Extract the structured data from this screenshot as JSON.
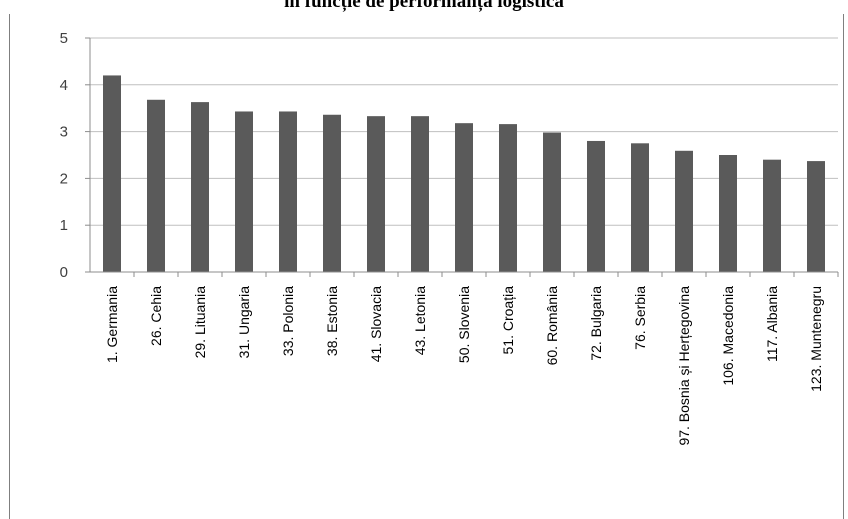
{
  "title_fragment": "în funcție de performanța logistică",
  "chart_data": {
    "type": "bar",
    "title": "în funcție de performanța logistică",
    "categories": [
      "1. Germania",
      "26. Cehia",
      "29. Lituania",
      "31. Ungaria",
      "33. Polonia",
      "38. Estonia",
      "41. Slovacia",
      "43. Letonia",
      "50. Slovenia",
      "51. Croația",
      "60. România",
      "72. Bulgaria",
      "76. Serbia",
      "97. Bosnia și Herțegovina",
      "106. Macedonia",
      "117. Albania",
      "123. Muntenegru"
    ],
    "values": [
      4.2,
      3.68,
      3.63,
      3.43,
      3.43,
      3.36,
      3.33,
      3.33,
      3.18,
      3.16,
      2.98,
      2.8,
      2.75,
      2.59,
      2.5,
      2.4,
      2.37
    ],
    "ylim": [
      0,
      5
    ],
    "yticks": [
      0,
      1,
      2,
      3,
      4,
      5
    ],
    "grid": true,
    "bar_color": "#5a5a5a",
    "grid_color": "#bfbfbf"
  }
}
